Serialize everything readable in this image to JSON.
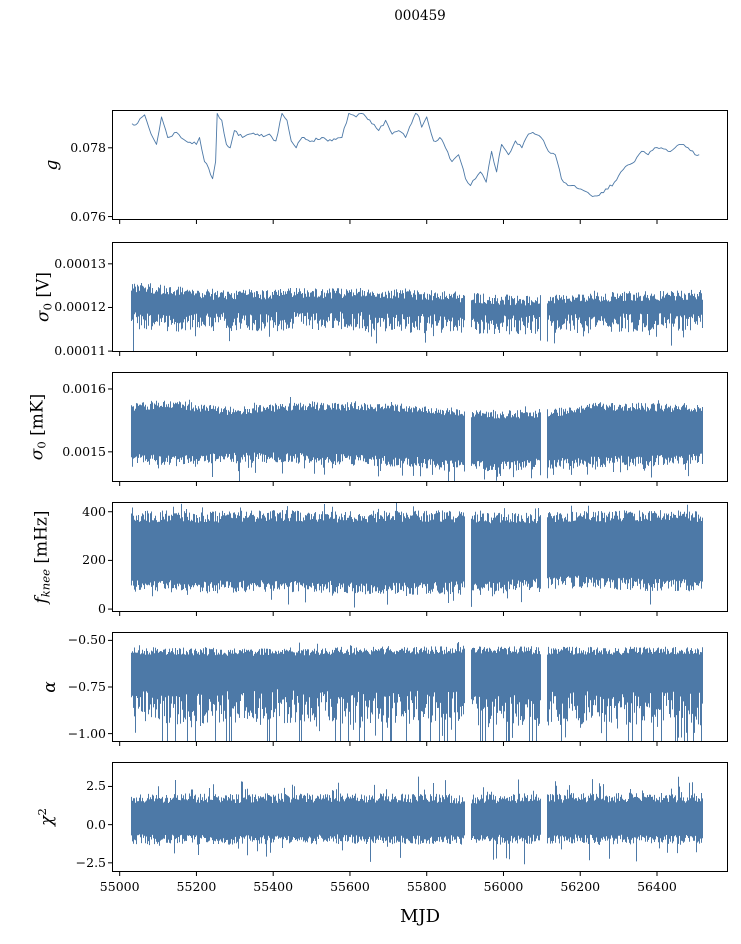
{
  "title": "000459",
  "chart_data": {
    "type": "line",
    "title": "000459",
    "xlabel": "MJD",
    "background": "#ffffff",
    "line_color": "#4d79a7",
    "axis_color": "#000000",
    "legend": "none",
    "grid": false,
    "seed": 7,
    "x_axis": {
      "lim": [
        54980,
        56585
      ],
      "tick_values": [
        55000,
        55200,
        55400,
        55600,
        55800,
        56000,
        56200,
        56400
      ],
      "tick_labels": [
        "55000",
        "55200",
        "55400",
        "55600",
        "55800",
        "56000",
        "56200",
        "56400"
      ]
    },
    "data_range": {
      "x_start": 55030,
      "x_end": 56517,
      "gaps": [
        [
          55898,
          55913
        ],
        [
          56096,
          56111
        ]
      ]
    },
    "panels": [
      {
        "id": "g",
        "kind": "trend",
        "ylabel_plain": "g",
        "ylabel_parts": [
          {
            "t": "g",
            "s": "i"
          }
        ],
        "ylim": [
          0.0759,
          0.0791
        ],
        "ytick_values": [
          0.076,
          0.078
        ],
        "ytick_labels": [
          "0.076",
          "0.078"
        ],
        "jitter": 5e-05,
        "series": {
          "x": [
            55032,
            55047,
            55065,
            55082,
            55096,
            55109,
            55125,
            55148,
            55172,
            55200,
            55208,
            55221,
            55232,
            55242,
            55250,
            55254,
            55266,
            55278,
            55288,
            55299,
            55320,
            55338,
            55364,
            55390,
            55407,
            55423,
            55436,
            55447,
            55460,
            55475,
            55501,
            55527,
            55553,
            55579,
            55597,
            55616,
            55630,
            55657,
            55675,
            55693,
            55710,
            55727,
            55745,
            55771,
            55780,
            55787,
            55800,
            55818,
            55834,
            55849,
            55866,
            55883,
            55901,
            55914,
            55927,
            55940,
            55955,
            55969,
            55982,
            55995,
            56013,
            56031,
            56048,
            56065,
            56082,
            56098,
            56117,
            56135,
            56151,
            56168,
            56185,
            56202,
            56220,
            56238,
            56255,
            56272,
            56289,
            56306,
            56324,
            56342,
            56360,
            56377,
            56394,
            56411,
            56429,
            56447,
            56464,
            56481,
            56499,
            56510
          ],
          "y": [
            0.0787,
            0.07872,
            0.07896,
            0.0784,
            0.0781,
            0.0789,
            0.0783,
            0.07845,
            0.0782,
            0.0781,
            0.0783,
            0.0776,
            0.0774,
            0.0771,
            0.0776,
            0.079,
            0.0788,
            0.0781,
            0.078,
            0.0785,
            0.0783,
            0.0784,
            0.07835,
            0.0784,
            0.0782,
            0.079,
            0.0788,
            0.0782,
            0.078,
            0.0783,
            0.0782,
            0.0783,
            0.0782,
            0.0783,
            0.079,
            0.0789,
            0.079,
            0.0787,
            0.0785,
            0.0788,
            0.0784,
            0.0785,
            0.0783,
            0.079,
            0.0789,
            0.0786,
            0.0789,
            0.0782,
            0.0783,
            0.078,
            0.0776,
            0.0778,
            0.0771,
            0.0769,
            0.0771,
            0.0773,
            0.077,
            0.0779,
            0.0773,
            0.0781,
            0.0778,
            0.0782,
            0.078,
            0.0784,
            0.0784,
            0.0783,
            0.0779,
            0.0778,
            0.0771,
            0.0769,
            0.0769,
            0.0768,
            0.0767,
            0.0766,
            0.0767,
            0.0768,
            0.077,
            0.0773,
            0.0775,
            0.0776,
            0.0779,
            0.0778,
            0.078,
            0.078,
            0.0779,
            0.078,
            0.0781,
            0.078,
            0.0778,
            0.0778
          ]
        }
      },
      {
        "id": "sigma0-v",
        "kind": "noise",
        "ylabel_plain": "σ0 [V]",
        "ylabel_parts": [
          {
            "t": "σ",
            "s": "i"
          },
          {
            "t": "0",
            "s": "sub"
          },
          {
            "t": " [V]",
            "s": "n"
          }
        ],
        "ylim": [
          0.0001098,
          0.000135
        ],
        "ytick_values": [
          0.00011,
          0.00012,
          0.00013
        ],
        "ytick_labels": [
          "0.00011",
          "0.00012",
          "0.00013"
        ],
        "noise": {
          "top": [
            [
              55030,
              0.0001242
            ],
            [
              55060,
              0.0001245
            ],
            [
              55150,
              0.0001236
            ],
            [
              55250,
              0.0001228
            ],
            [
              55350,
              0.000123
            ],
            [
              55450,
              0.0001233
            ],
            [
              55550,
              0.0001232
            ],
            [
              55650,
              0.0001234
            ],
            [
              55750,
              0.0001231
            ],
            [
              55850,
              0.0001226
            ],
            [
              55950,
              0.000122
            ],
            [
              56050,
              0.0001216
            ],
            [
              56150,
              0.0001219
            ],
            [
              56250,
              0.0001223
            ],
            [
              56350,
              0.0001226
            ],
            [
              56450,
              0.0001228
            ],
            [
              56517,
              0.0001229
            ]
          ],
          "bottom": [
            [
              55030,
              0.000117
            ],
            [
              55150,
              0.0001164
            ],
            [
              55300,
              0.0001167
            ],
            [
              55450,
              0.0001168
            ],
            [
              55600,
              0.0001169
            ],
            [
              55750,
              0.0001164
            ],
            [
              55900,
              0.0001161
            ],
            [
              56050,
              0.000116
            ],
            [
              56200,
              0.0001163
            ],
            [
              56350,
              0.0001166
            ],
            [
              56517,
              0.0001169
            ]
          ],
          "top_jit": 1.2e-06,
          "bot_jit": 2.2e-06,
          "top_spike": 8e-07,
          "top_spike_prob": 0.04,
          "bot_spike": 4.2e-06,
          "bot_spike_prob": 0.07
        },
        "drops": [
          {
            "x": 55034,
            "to": 0.0001097
          }
        ]
      },
      {
        "id": "sigma0-mk",
        "kind": "noise",
        "ylabel_plain": "σ0 [mK]",
        "ylabel_parts": [
          {
            "t": "σ",
            "s": "i"
          },
          {
            "t": "0",
            "s": "sub"
          },
          {
            "t": " [mK]",
            "s": "n"
          }
        ],
        "ylim": [
          0.001452,
          0.001627
        ],
        "ytick_values": [
          0.0015,
          0.0016
        ],
        "ytick_labels": [
          "0.0015",
          "0.0016"
        ],
        "noise": {
          "top": [
            [
              55030,
              0.001572
            ],
            [
              55120,
              0.001576
            ],
            [
              55220,
              0.00157
            ],
            [
              55300,
              0.001564
            ],
            [
              55400,
              0.00157
            ],
            [
              55500,
              0.001573
            ],
            [
              55620,
              0.001572
            ],
            [
              55750,
              0.00157
            ],
            [
              55880,
              0.001563
            ],
            [
              56000,
              0.001559
            ],
            [
              56120,
              0.001562
            ],
            [
              56250,
              0.001572
            ],
            [
              56400,
              0.00157
            ],
            [
              56517,
              0.001571
            ]
          ],
          "bottom": [
            [
              55030,
              0.00149
            ],
            [
              55150,
              0.001486
            ],
            [
              55300,
              0.001492
            ],
            [
              55450,
              0.00149
            ],
            [
              55600,
              0.001487
            ],
            [
              55750,
              0.001485
            ],
            [
              55900,
              0.001477
            ],
            [
              56050,
              0.001479
            ],
            [
              56200,
              0.001483
            ],
            [
              56350,
              0.001486
            ],
            [
              56517,
              0.001489
            ]
          ],
          "top_jit": 7e-06,
          "bot_jit": 9e-06,
          "top_spike": 1e-05,
          "top_spike_prob": 0.05,
          "bot_spike": 2.6e-05,
          "bot_spike_prob": 0.09
        },
        "drops": [
          {
            "x": 55240,
            "to": 0.00146
          },
          {
            "x": 55312,
            "to": 0.001452
          },
          {
            "x": 55950,
            "to": 0.001456
          }
        ]
      },
      {
        "id": "fknee",
        "kind": "noise",
        "ylabel_plain": "fknee [mHz]",
        "ylabel_parts": [
          {
            "t": "f",
            "s": "i"
          },
          {
            "t": "knee",
            "s": "sub"
          },
          {
            "t": " [mHz]",
            "s": "n"
          }
        ],
        "ylim": [
          -12,
          440
        ],
        "ytick_values": [
          0,
          200,
          400
        ],
        "ytick_labels": [
          "0",
          "200",
          "400"
        ],
        "noise": {
          "top": [
            [
              55030,
              382
            ],
            [
              55200,
              378
            ],
            [
              55400,
              384
            ],
            [
              55600,
              379
            ],
            [
              55800,
              383
            ],
            [
              56000,
              374
            ],
            [
              56200,
              380
            ],
            [
              56400,
              383
            ],
            [
              56517,
              382
            ]
          ],
          "bottom": [
            [
              55030,
              96
            ],
            [
              55200,
              90
            ],
            [
              55400,
              95
            ],
            [
              55600,
              88
            ],
            [
              55800,
              84
            ],
            [
              56000,
              95
            ],
            [
              56200,
              112
            ],
            [
              56400,
              98
            ],
            [
              56517,
              95
            ]
          ],
          "top_jit": 24,
          "bot_jit": 26,
          "top_spike": 48,
          "top_spike_prob": 0.08,
          "bot_spike": 62,
          "bot_spike_prob": 0.08
        },
        "drops": []
      },
      {
        "id": "alpha",
        "kind": "noise",
        "ylabel_plain": "α",
        "ylabel_parts": [
          {
            "t": "α",
            "s": "i"
          }
        ],
        "ylim": [
          -1.045,
          -0.455
        ],
        "ytick_values": [
          -1.0,
          -0.75,
          -0.5
        ],
        "ytick_labels": [
          "−1.00",
          "−0.75",
          "−0.50"
        ],
        "noise": {
          "top": [
            [
              55030,
              -0.556
            ],
            [
              55300,
              -0.562
            ],
            [
              55600,
              -0.556
            ],
            [
              55900,
              -0.552
            ],
            [
              56200,
              -0.557
            ],
            [
              56517,
              -0.555
            ]
          ],
          "bottom": [
            [
              55030,
              -0.84
            ],
            [
              55200,
              -0.87
            ],
            [
              55400,
              -0.85
            ],
            [
              55600,
              -0.865
            ],
            [
              55800,
              -0.855
            ],
            [
              56000,
              -0.875
            ],
            [
              56200,
              -0.86
            ],
            [
              56517,
              -0.865
            ]
          ],
          "top_jit": 0.022,
          "bot_jit": 0.09,
          "top_spike": 0.035,
          "top_spike_prob": 0.05,
          "bot_spike": 0.34,
          "bot_spike_prob": 0.2
        },
        "drops": []
      },
      {
        "id": "chi2",
        "kind": "noise",
        "ylabel_plain": "χ2",
        "ylabel_parts": [
          {
            "t": "χ",
            "s": "i"
          },
          {
            "t": "2",
            "s": "sup"
          }
        ],
        "ylim": [
          -3.1,
          4.1
        ],
        "ytick_values": [
          -2.5,
          0.0,
          2.5
        ],
        "ytick_labels": [
          "−2.5",
          "0.0",
          "2.5"
        ],
        "noise": {
          "top": [
            [
              55030,
              1.75
            ],
            [
              55300,
              1.7
            ],
            [
              55600,
              1.78
            ],
            [
              55900,
              1.68
            ],
            [
              56200,
              1.78
            ],
            [
              56517,
              1.75
            ]
          ],
          "bottom": [
            [
              55030,
              -0.95
            ],
            [
              55300,
              -1.02
            ],
            [
              55600,
              -0.95
            ],
            [
              55900,
              -1.0
            ],
            [
              56200,
              -0.96
            ],
            [
              56517,
              -1.0
            ]
          ],
          "top_jit": 0.32,
          "bot_jit": 0.32,
          "top_spike": 1.2,
          "top_spike_prob": 0.12,
          "bot_spike": 1.5,
          "bot_spike_prob": 0.07
        },
        "drops": []
      }
    ]
  }
}
